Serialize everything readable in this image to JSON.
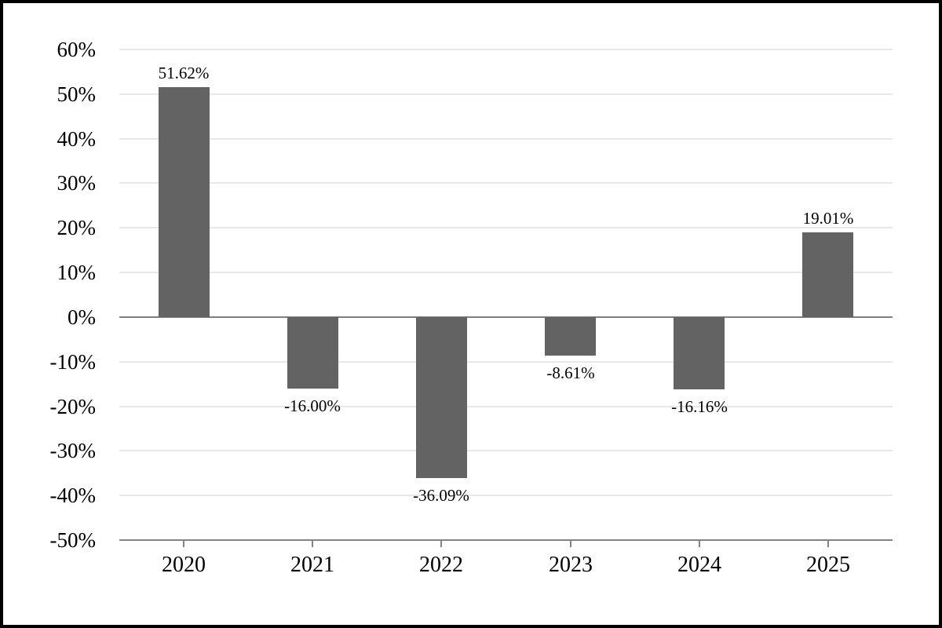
{
  "figure": {
    "background": "#ffffff",
    "frame_color": "#000000"
  },
  "chart_data": {
    "type": "bar",
    "title": "",
    "xlabel": "",
    "ylabel": "",
    "categories": [
      "2020",
      "2021",
      "2022",
      "2023",
      "2024",
      "2025"
    ],
    "values": [
      51.62,
      -16.0,
      -36.09,
      -8.61,
      -16.16,
      19.01
    ],
    "value_labels": [
      "51.62%",
      "-16.00%",
      "-36.09%",
      "-8.61%",
      "-16.16%",
      "19.01%"
    ],
    "yticks": [
      60,
      50,
      40,
      30,
      20,
      10,
      0,
      -10,
      -20,
      -30,
      -40,
      -50
    ],
    "ytick_labels": [
      "60%",
      "50%",
      "40%",
      "30%",
      "20%",
      "10%",
      "0%",
      "-10%",
      "-20%",
      "-30%",
      "-40%",
      "-50%"
    ],
    "ylim": [
      -50,
      60
    ],
    "grid": true,
    "legend_position": "none",
    "bar_color": "#636363",
    "gridline_color": "#e8e8e8",
    "zero_line_color": "#7f7f7f",
    "axis_line_color": "#848484",
    "text_color": "#000000"
  }
}
